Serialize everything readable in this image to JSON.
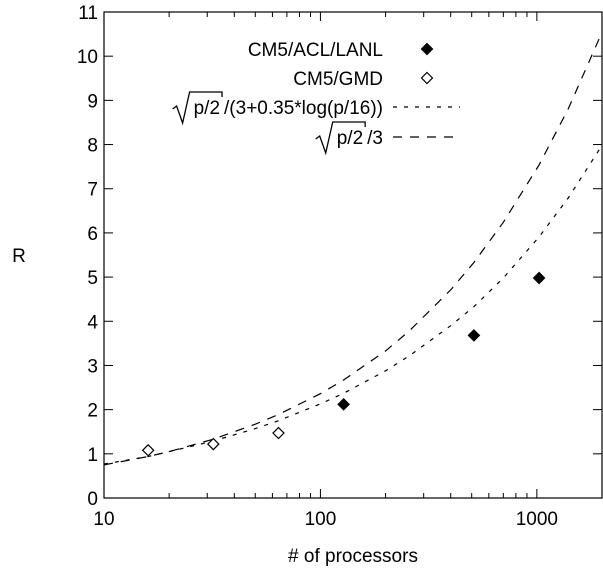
{
  "chart_data": {
    "type": "scatter",
    "title": "",
    "xlabel": "# of processors",
    "ylabel": "R",
    "x_scale": "log",
    "xlim": [
      10,
      2000
    ],
    "ylim": [
      0,
      11
    ],
    "x_ticks": [
      {
        "value": 10,
        "label": "10"
      },
      {
        "value": 100,
        "label": "100"
      },
      {
        "value": 1000,
        "label": "1000"
      }
    ],
    "y_ticks": [
      {
        "value": 0,
        "label": "0"
      },
      {
        "value": 1,
        "label": "1"
      },
      {
        "value": 2,
        "label": "2"
      },
      {
        "value": 3,
        "label": "3"
      },
      {
        "value": 4,
        "label": "4"
      },
      {
        "value": 5,
        "label": "5"
      },
      {
        "value": 6,
        "label": "6"
      },
      {
        "value": 7,
        "label": "7"
      },
      {
        "value": 8,
        "label": "8"
      },
      {
        "value": 9,
        "label": "9"
      },
      {
        "value": 10,
        "label": "10"
      },
      {
        "value": 11,
        "label": "11"
      }
    ],
    "grid": false,
    "legend_position": "top-right",
    "series": [
      {
        "name": "CM5/ACL/LANL",
        "kind": "points",
        "marker": "filled-diamond",
        "points": [
          {
            "x": 128,
            "y": 2.12
          },
          {
            "x": 512,
            "y": 3.68
          },
          {
            "x": 1024,
            "y": 4.98
          }
        ]
      },
      {
        "name": "CM5/GMD",
        "kind": "points",
        "marker": "open-diamond",
        "points": [
          {
            "x": 16,
            "y": 1.08
          },
          {
            "x": 32,
            "y": 1.22
          },
          {
            "x": 64,
            "y": 1.47
          }
        ]
      },
      {
        "name": "p/2 /(3+0.35*log(p/16))",
        "legend_radicand": "p/2",
        "legend_suffix": "/(3+0.35*log(p/16))",
        "kind": "line",
        "dash": "short",
        "points": [
          {
            "x": 10,
            "y": 0.77
          },
          {
            "x": 16,
            "y": 0.94
          },
          {
            "x": 20,
            "y": 1.05
          },
          {
            "x": 32,
            "y": 1.29
          },
          {
            "x": 50,
            "y": 1.57
          },
          {
            "x": 64,
            "y": 1.75
          },
          {
            "x": 100,
            "y": 2.13
          },
          {
            "x": 128,
            "y": 2.37
          },
          {
            "x": 200,
            "y": 2.88
          },
          {
            "x": 256,
            "y": 3.21
          },
          {
            "x": 400,
            "y": 3.9
          },
          {
            "x": 512,
            "y": 4.33
          },
          {
            "x": 700,
            "y": 4.98
          },
          {
            "x": 1024,
            "y": 5.91
          },
          {
            "x": 1400,
            "y": 6.8
          },
          {
            "x": 2000,
            "y": 7.98
          }
        ]
      },
      {
        "name": "p/2 /3",
        "legend_radicand": "p/2",
        "legend_suffix": "/3",
        "kind": "line",
        "dash": "long",
        "points": [
          {
            "x": 10,
            "y": 0.75
          },
          {
            "x": 16,
            "y": 0.94
          },
          {
            "x": 20,
            "y": 1.05
          },
          {
            "x": 32,
            "y": 1.33
          },
          {
            "x": 50,
            "y": 1.67
          },
          {
            "x": 64,
            "y": 1.89
          },
          {
            "x": 100,
            "y": 2.36
          },
          {
            "x": 128,
            "y": 2.67
          },
          {
            "x": 200,
            "y": 3.33
          },
          {
            "x": 256,
            "y": 3.77
          },
          {
            "x": 400,
            "y": 4.71
          },
          {
            "x": 512,
            "y": 5.33
          },
          {
            "x": 700,
            "y": 6.24
          },
          {
            "x": 1024,
            "y": 7.54
          },
          {
            "x": 1400,
            "y": 8.82
          },
          {
            "x": 2000,
            "y": 10.54
          }
        ]
      }
    ]
  }
}
